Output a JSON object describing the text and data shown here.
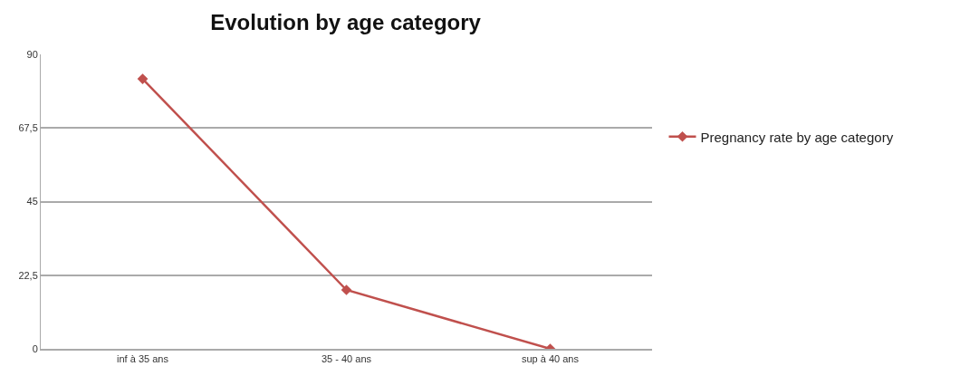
{
  "chart_data": {
    "type": "line",
    "title": "Evolution by age category",
    "categories": [
      "inf à 35 ans",
      "35 - 40 ans",
      "sup à 40 ans"
    ],
    "series": [
      {
        "name": "Pregnancy rate by age category",
        "color": "#c0504d",
        "values": [
          82.5,
          18,
          0
        ]
      }
    ],
    "ylim": [
      0,
      90
    ],
    "yticks": [
      0,
      {
        "value": 22.5,
        "label": "22,5"
      },
      45,
      {
        "value": 67.5,
        "label": "67,5"
      },
      90
    ],
    "grid": "y",
    "legend": "right",
    "marker": "diamond",
    "line_style": "solid"
  }
}
